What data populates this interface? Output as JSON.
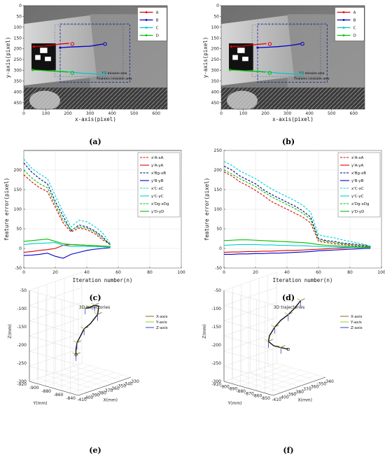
{
  "sublabels": [
    "(a)",
    "(b)",
    "(c)",
    "(d)",
    "(e)",
    "(f)"
  ],
  "colors": {
    "A": "#e00000",
    "B": "#0000c8",
    "C": "#00c8c8",
    "D": "#00c000",
    "axis_x": "#8b6914",
    "axis_y": "#9acd32",
    "axis_z": "#3040d0"
  },
  "chart_data": [
    {
      "panel": "a",
      "type": "scatter",
      "title": "",
      "xlabel": "x-axis(pixel)",
      "ylabel": "y-axis(pixel)",
      "xlim": [
        0,
        650
      ],
      "ylim": [
        480,
        0
      ],
      "xticks": [
        "0",
        "100",
        "200",
        "300",
        "400",
        "500",
        "600"
      ],
      "yticks": [
        "0",
        "50",
        "100",
        "150",
        "200",
        "250",
        "300",
        "350",
        "400",
        "450"
      ],
      "legend": [
        "A",
        "B",
        "C",
        "D"
      ],
      "annotations": [
        "VS mission area",
        "Features constaint area"
      ],
      "series": [
        {
          "name": "A",
          "points": [
            [
              45,
              190
            ],
            [
              90,
              188
            ],
            [
              130,
              183
            ],
            [
              165,
              178
            ],
            [
              205,
              175
            ]
          ],
          "end": [
            220,
            178
          ]
        },
        {
          "name": "B",
          "points": [
            [
              165,
              195
            ],
            [
              210,
              192
            ],
            [
              260,
              190
            ],
            [
              300,
              188
            ],
            [
              330,
              183
            ],
            [
              360,
              178
            ]
          ],
          "end": [
            368,
            178
          ]
        },
        {
          "name": "C",
          "points": [
            [
              165,
              305
            ],
            [
              220,
              308
            ],
            [
              260,
              313
            ],
            [
              310,
              316
            ],
            [
              350,
              318
            ]
          ],
          "end": [
            365,
            318
          ]
        },
        {
          "name": "D",
          "points": [
            [
              40,
              298
            ],
            [
              80,
              300
            ],
            [
              120,
              303
            ],
            [
              165,
              305
            ],
            [
              200,
              308
            ]
          ],
          "end": [
            220,
            312
          ]
        }
      ]
    },
    {
      "panel": "b",
      "type": "scatter",
      "title": "",
      "xlabel": "x-axis(pixel)",
      "ylabel": "y-axis(pixel)",
      "xlim": [
        0,
        650
      ],
      "ylim": [
        480,
        0
      ],
      "xticks": [
        "0",
        "100",
        "200",
        "300",
        "400",
        "500",
        "600"
      ],
      "yticks": [
        "0",
        "50",
        "100",
        "150",
        "200",
        "250",
        "300",
        "350",
        "400",
        "450"
      ],
      "legend": [
        "A",
        "B",
        "C",
        "D"
      ],
      "annotations": [
        "VS mission area",
        "Features constaint area"
      ],
      "series": [
        {
          "name": "A",
          "points": [
            [
              45,
              190
            ],
            [
              90,
              188
            ],
            [
              130,
              183
            ],
            [
              165,
              180
            ],
            [
              205,
              176
            ]
          ],
          "end": [
            220,
            178
          ]
        },
        {
          "name": "B",
          "points": [
            [
              165,
              195
            ],
            [
              210,
              193
            ],
            [
              260,
              190
            ],
            [
              300,
              186
            ],
            [
              330,
              182
            ],
            [
              360,
              177
            ]
          ],
          "end": [
            368,
            177
          ]
        },
        {
          "name": "C",
          "points": [
            [
              165,
              305
            ],
            [
              220,
              308
            ],
            [
              260,
              313
            ],
            [
              310,
              316
            ],
            [
              350,
              318
            ]
          ],
          "end": [
            365,
            318
          ]
        },
        {
          "name": "D",
          "points": [
            [
              40,
              298
            ],
            [
              80,
              300
            ],
            [
              120,
              303
            ],
            [
              165,
              305
            ],
            [
              200,
              308
            ]
          ],
          "end": [
            220,
            312
          ]
        }
      ]
    },
    {
      "panel": "c",
      "type": "line",
      "title": "",
      "xlabel": "Iteration number(n)",
      "ylabel": "feature error(pixel)",
      "xlim": [
        0,
        100
      ],
      "ylim": [
        -50,
        250
      ],
      "xticks": [
        "0",
        "20",
        "40",
        "60",
        "80",
        "100"
      ],
      "yticks": [
        "-50",
        "0",
        "50",
        "100",
        "150",
        "200"
      ],
      "legend": [
        "x'A-xA",
        "y'A-yA",
        "x'Bg-xB",
        "y'B-yB",
        "x'C-xC",
        "y'C-yC",
        "x'Dg-xDg",
        "y'D-yD"
      ],
      "x": [
        0,
        5,
        10,
        15,
        20,
        25,
        30,
        35,
        40,
        45,
        50,
        55
      ],
      "series": [
        {
          "name": "x'A-xA",
          "color": "#e00000",
          "dash": true,
          "values": [
            188,
            170,
            155,
            145,
            105,
            65,
            42,
            52,
            48,
            38,
            22,
            10
          ]
        },
        {
          "name": "y'A-yA",
          "color": "#e00000",
          "dash": false,
          "values": [
            -10,
            -8,
            -5,
            -3,
            0,
            8,
            10,
            9,
            8,
            7,
            6,
            5
          ]
        },
        {
          "name": "x'Bg-xB",
          "color": "#000080",
          "dash": true,
          "values": [
            218,
            195,
            178,
            165,
            120,
            82,
            45,
            60,
            55,
            45,
            30,
            8
          ]
        },
        {
          "name": "y'B-yB",
          "color": "#0000c8",
          "dash": false,
          "values": [
            -18,
            -17,
            -15,
            -12,
            -20,
            -25,
            -15,
            -10,
            -5,
            -2,
            0,
            2
          ]
        },
        {
          "name": "x'C-xC",
          "color": "#00d0d0",
          "dash": true,
          "values": [
            228,
            205,
            190,
            178,
            135,
            92,
            55,
            72,
            68,
            56,
            40,
            12
          ]
        },
        {
          "name": "y'C-yC",
          "color": "#00d0d0",
          "dash": false,
          "values": [
            10,
            12,
            13,
            14,
            15,
            8,
            5,
            6,
            5,
            5,
            4,
            3
          ]
        },
        {
          "name": "x'Dg-xDg",
          "color": "#00c000",
          "dash": true,
          "values": [
            200,
            180,
            165,
            155,
            112,
            72,
            48,
            55,
            52,
            42,
            26,
            10
          ]
        },
        {
          "name": "y'D-yD",
          "color": "#00c000",
          "dash": false,
          "values": [
            18,
            20,
            22,
            24,
            18,
            12,
            10,
            9,
            8,
            7,
            6,
            5
          ]
        }
      ]
    },
    {
      "panel": "d",
      "type": "line",
      "title": "",
      "xlabel": "Iteration number(n)",
      "ylabel": "feature error(pixel)",
      "xlim": [
        0,
        100
      ],
      "ylim": [
        -50,
        250
      ],
      "xticks": [
        "0",
        "20",
        "40",
        "60",
        "80",
        "100"
      ],
      "yticks": [
        "-50",
        "0",
        "50",
        "100",
        "150",
        "200",
        "250"
      ],
      "legend": [
        "x'A-xA",
        "y'A-yA",
        "x'Bg-xB",
        "y'B-yB",
        "x'C-xC",
        "y'C-yC",
        "x'Dg-xDg",
        "y'D-yD"
      ],
      "x": [
        0,
        5,
        10,
        15,
        20,
        25,
        30,
        35,
        40,
        45,
        50,
        55,
        60,
        65,
        70,
        75,
        80,
        85,
        90,
        93
      ],
      "series": [
        {
          "name": "x'A-xA",
          "color": "#e00000",
          "dash": true,
          "values": [
            195,
            185,
            170,
            160,
            148,
            135,
            120,
            110,
            100,
            90,
            80,
            65,
            18,
            15,
            12,
            10,
            8,
            6,
            5,
            3
          ]
        },
        {
          "name": "y'A-yA",
          "color": "#e00000",
          "dash": false,
          "values": [
            -10,
            -9,
            -9,
            -8,
            -8,
            -7,
            -7,
            -6,
            -5,
            -5,
            -4,
            -3,
            -2,
            -1,
            0,
            1,
            2,
            3,
            3,
            3
          ]
        },
        {
          "name": "x'Bg-xB",
          "color": "#000080",
          "dash": true,
          "values": [
            210,
            200,
            185,
            175,
            165,
            150,
            138,
            128,
            118,
            108,
            96,
            80,
            25,
            20,
            18,
            14,
            12,
            10,
            8,
            5
          ]
        },
        {
          "name": "y'B-yB",
          "color": "#0000c8",
          "dash": false,
          "values": [
            -15,
            -15,
            -14,
            -14,
            -13,
            -13,
            -12,
            -12,
            -11,
            -10,
            -9,
            -8,
            -6,
            -5,
            -4,
            -3,
            -2,
            -1,
            0,
            0
          ]
        },
        {
          "name": "x'C-xC",
          "color": "#00d0d0",
          "dash": true,
          "values": [
            222,
            212,
            198,
            188,
            178,
            165,
            152,
            142,
            132,
            122,
            110,
            92,
            35,
            30,
            27,
            22,
            18,
            14,
            10,
            5
          ]
        },
        {
          "name": "y'C-yC",
          "color": "#00d0d0",
          "dash": false,
          "values": [
            8,
            9,
            10,
            10,
            10,
            9,
            9,
            8,
            8,
            7,
            7,
            6,
            5,
            4,
            4,
            3,
            3,
            2,
            2,
            2
          ]
        },
        {
          "name": "x'Dg-xDg",
          "color": "#00c000",
          "dash": true,
          "values": [
            200,
            190,
            178,
            168,
            158,
            145,
            132,
            122,
            112,
            102,
            90,
            74,
            22,
            18,
            15,
            12,
            10,
            8,
            6,
            4
          ]
        },
        {
          "name": "y'D-yD",
          "color": "#00c000",
          "dash": false,
          "values": [
            20,
            21,
            22,
            22,
            21,
            20,
            19,
            18,
            17,
            16,
            15,
            13,
            10,
            8,
            7,
            6,
            5,
            4,
            3,
            3
          ]
        }
      ]
    },
    {
      "panel": "e",
      "type": "line",
      "title": "3D trajectories",
      "xlabel": "X(mm)",
      "ylabel": "Y(mm)",
      "zlabel": "Z(mm)",
      "legend": [
        "X-axis",
        "Y-axis",
        "Z-axis"
      ],
      "xticks": [
        "-410",
        "-400",
        "-390",
        "-380",
        "-370",
        "-360",
        "-350",
        "-340",
        "-330"
      ],
      "yticks": [
        "-920",
        "-900",
        "-880",
        "-860",
        "-840"
      ],
      "zticks": [
        "-300",
        "-250",
        "-200",
        "-150",
        "-100",
        "-50"
      ]
    },
    {
      "panel": "f",
      "type": "line",
      "title": "3D trajectories",
      "xlabel": "X(mm)",
      "ylabel": "Y(mm)",
      "zlabel": "Z(mm)",
      "legend": [
        "X-axis",
        "Y-axis",
        "Z-axis"
      ],
      "xticks": [
        "-410",
        "-400",
        "-390",
        "-380",
        "-370",
        "-360",
        "-350",
        "-340"
      ],
      "yticks": [
        "-910",
        "-900",
        "-890",
        "-880",
        "-870",
        "-860",
        "-850"
      ],
      "zticks": [
        "-300",
        "-250",
        "-200",
        "-150",
        "-100",
        "-50"
      ]
    }
  ]
}
